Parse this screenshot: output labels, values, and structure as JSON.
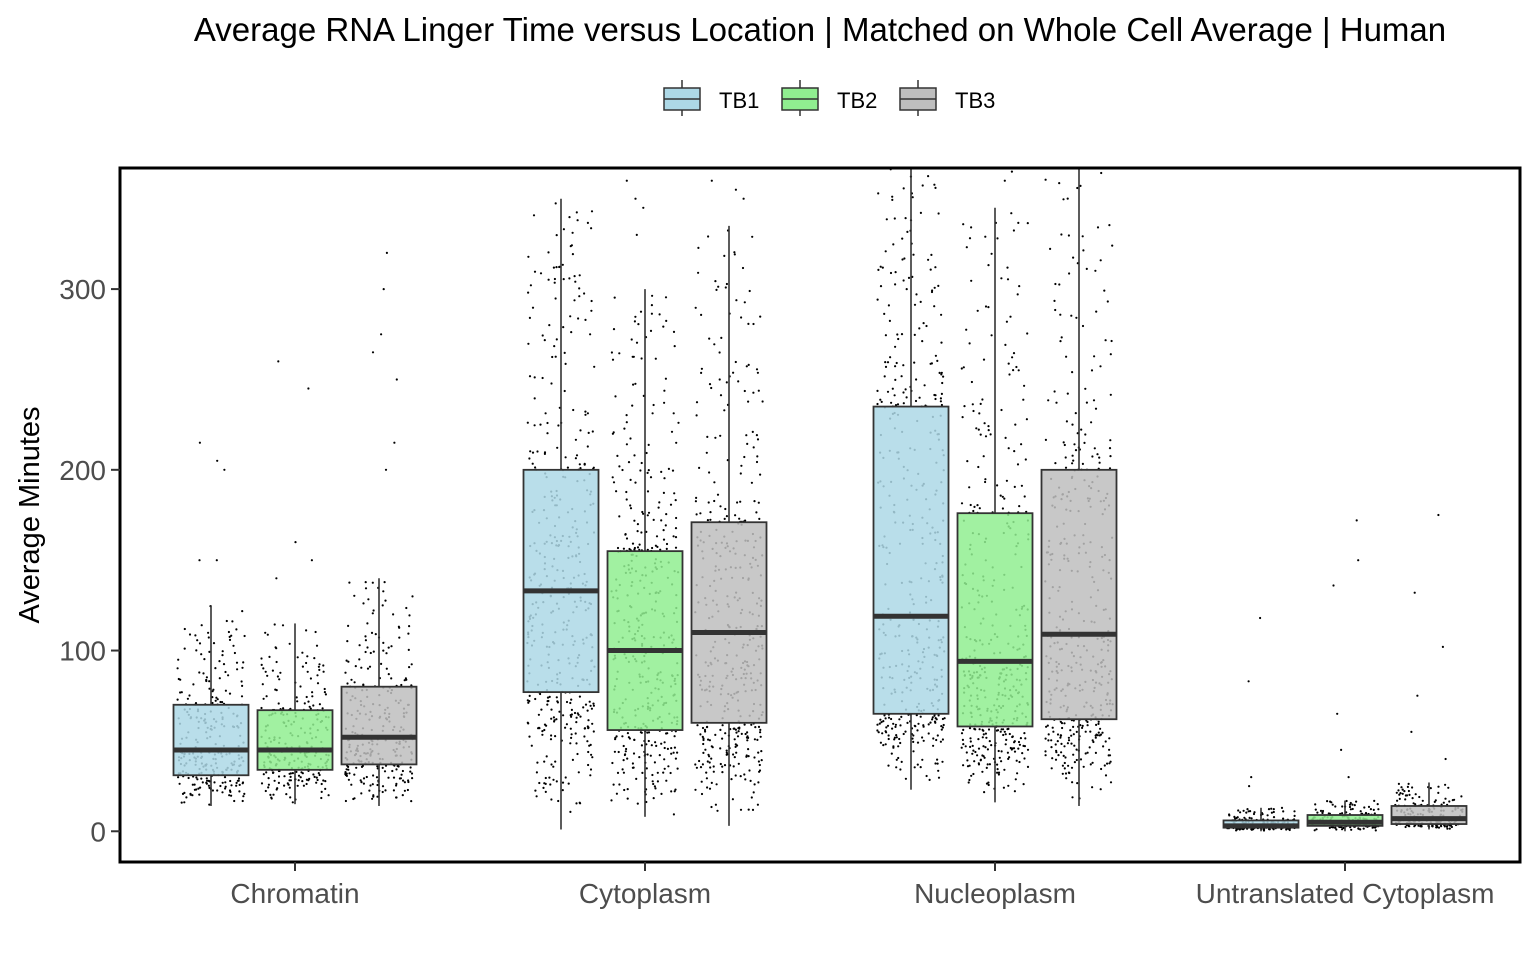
{
  "chart_data": {
    "type": "boxplot",
    "title": "Average RNA Linger Time versus Location | Matched on Whole Cell Average | Human",
    "xlabel": "",
    "ylabel": "Average Minutes",
    "ylim": [
      -17,
      367
    ],
    "yticks": [
      0,
      100,
      200,
      300
    ],
    "categories": [
      "Chromatin",
      "Cytoplasm",
      "Nucleoplasm",
      "Untranslated Cytoplasm"
    ],
    "legend": {
      "position": "top",
      "entries": [
        "TB1",
        "TB2",
        "TB3"
      ]
    },
    "grid": false,
    "series": [
      {
        "name": "TB1",
        "color": "#add8e6",
        "boxes": [
          {
            "min": 14,
            "q1": 31,
            "median": 45,
            "q3": 70,
            "max": 125,
            "outliers": [
              150,
              150,
              205,
              200,
              215
            ]
          },
          {
            "min": 1,
            "q1": 77,
            "median": 133,
            "q3": 200,
            "max": 350,
            "outliers": []
          },
          {
            "min": 23,
            "q1": 65,
            "median": 119,
            "q3": 235,
            "max": 367,
            "outliers": []
          },
          {
            "min": 0,
            "q1": 2,
            "median": 3,
            "q3": 6,
            "max": 13,
            "outliers": [
              25,
              30,
              83,
              118
            ]
          }
        ]
      },
      {
        "name": "TB2",
        "color": "#90ee90",
        "boxes": [
          {
            "min": 15,
            "q1": 34,
            "median": 45,
            "q3": 67,
            "max": 115,
            "outliers": [
              140,
              150,
              160,
              245,
              260
            ]
          },
          {
            "min": 8,
            "q1": 56,
            "median": 100,
            "q3": 155,
            "max": 300,
            "outliers": [
              330,
              345,
              350,
              360
            ]
          },
          {
            "min": 16,
            "q1": 58,
            "median": 94,
            "q3": 176,
            "max": 345,
            "outliers": [
              360,
              365
            ]
          },
          {
            "min": 0,
            "q1": 3,
            "median": 5,
            "q3": 9,
            "max": 17,
            "outliers": [
              30,
              45,
              65,
              136,
              150,
              172
            ]
          }
        ]
      },
      {
        "name": "TB3",
        "color": "#bebebe",
        "boxes": [
          {
            "min": 14,
            "q1": 37,
            "median": 52,
            "q3": 80,
            "max": 140,
            "outliers": [
              200,
              215,
              250,
              265,
              275,
              300,
              320
            ]
          },
          {
            "min": 3,
            "q1": 60,
            "median": 110,
            "q3": 171,
            "max": 335,
            "outliers": [
              350,
              355,
              360
            ]
          },
          {
            "min": 14,
            "q1": 62,
            "median": 109,
            "q3": 200,
            "max": 367,
            "outliers": []
          },
          {
            "min": 1,
            "q1": 4,
            "median": 7,
            "q3": 14,
            "max": 27,
            "outliers": [
              40,
              55,
              75,
              102,
              132,
              175
            ]
          }
        ]
      }
    ],
    "jitter_points": "overlaid raw data points per box (approximate)"
  }
}
